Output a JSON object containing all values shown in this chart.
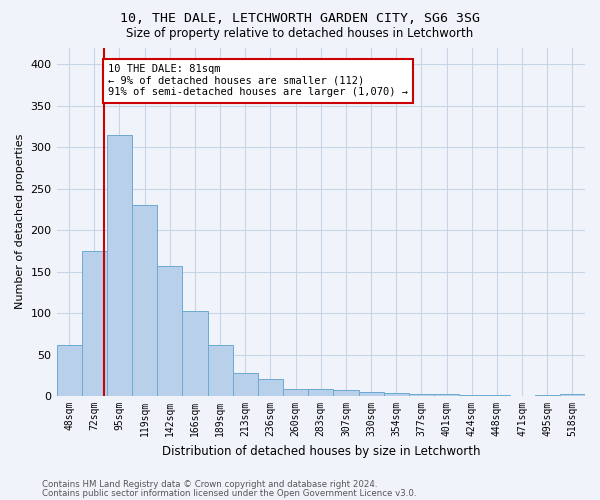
{
  "title1": "10, THE DALE, LETCHWORTH GARDEN CITY, SG6 3SG",
  "title2": "Size of property relative to detached houses in Letchworth",
  "xlabel": "Distribution of detached houses by size in Letchworth",
  "ylabel": "Number of detached properties",
  "categories": [
    "48sqm",
    "72sqm",
    "95sqm",
    "119sqm",
    "142sqm",
    "166sqm",
    "189sqm",
    "213sqm",
    "236sqm",
    "260sqm",
    "283sqm",
    "307sqm",
    "330sqm",
    "354sqm",
    "377sqm",
    "401sqm",
    "424sqm",
    "448sqm",
    "471sqm",
    "495sqm",
    "518sqm"
  ],
  "values": [
    62,
    175,
    315,
    230,
    157,
    103,
    61,
    28,
    21,
    8,
    9,
    7,
    5,
    4,
    3,
    2,
    1,
    1,
    0,
    1,
    2
  ],
  "bar_color": "#b8d0ea",
  "bar_edge_color": "#6aaad4",
  "grid_color": "#c8d4e8",
  "annotation_text": "10 THE DALE: 81sqm\n← 9% of detached houses are smaller (112)\n91% of semi-detached houses are larger (1,070) →",
  "annotation_box_color": "#ffffff",
  "annotation_box_edge": "#cc0000",
  "vline_color": "#cc0000",
  "ylim": [
    0,
    420
  ],
  "yticks": [
    0,
    50,
    100,
    150,
    200,
    250,
    300,
    350,
    400
  ],
  "footer1": "Contains HM Land Registry data © Crown copyright and database right 2024.",
  "footer2": "Contains public sector information licensed under the Open Government Licence v3.0.",
  "bg_color": "#f0f4fa"
}
